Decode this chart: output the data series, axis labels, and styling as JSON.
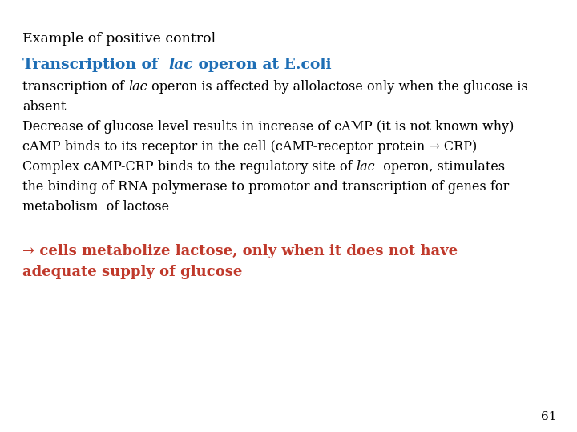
{
  "background_color": "#ffffff",
  "title1": "Example of positive control",
  "title2_parts": [
    {
      "text": "Transcription of  ",
      "italic": false,
      "color": "#1e6eb5"
    },
    {
      "text": "lac",
      "italic": true,
      "color": "#1e6eb5"
    },
    {
      "text": " operon at E.coli",
      "italic": false,
      "color": "#1e6eb5"
    }
  ],
  "body_lines": [
    [
      {
        "text": "transcription of ",
        "italic": false,
        "color": "#000000"
      },
      {
        "text": "lac",
        "italic": true,
        "color": "#000000"
      },
      {
        "text": " operon is affected by allolactose only when the glucose is",
        "italic": false,
        "color": "#000000"
      }
    ],
    [
      {
        "text": "absent",
        "italic": false,
        "color": "#000000"
      }
    ],
    [
      {
        "text": "Decrease of glucose level results in increase of cAMP (it is not known why)",
        "italic": false,
        "color": "#000000"
      }
    ],
    [
      {
        "text": "cAMP binds to its receptor in the cell (cAMP-receptor protein → CRP)",
        "italic": false,
        "color": "#000000"
      }
    ],
    [
      {
        "text": "Complex cAMP-CRP binds to the regulatory site of ",
        "italic": false,
        "color": "#000000"
      },
      {
        "text": "lac",
        "italic": true,
        "color": "#000000"
      },
      {
        "text": "  operon, stimulates",
        "italic": false,
        "color": "#000000"
      }
    ],
    [
      {
        "text": "the binding of RNA polymerase to promotor and transcription of genes for",
        "italic": false,
        "color": "#000000"
      }
    ],
    [
      {
        "text": "metabolism  of lactose",
        "italic": false,
        "color": "#000000"
      }
    ]
  ],
  "conclusion_line1": "→ cells metabolize lactose, only when it does not have",
  "conclusion_line2": "adequate supply of glucose",
  "conclusion_color": "#c0392b",
  "page_number": "61",
  "title1_fontsize": 12.5,
  "title2_fontsize": 13.5,
  "body_fontsize": 11.5,
  "conclusion_fontsize": 13,
  "page_fontsize": 11
}
